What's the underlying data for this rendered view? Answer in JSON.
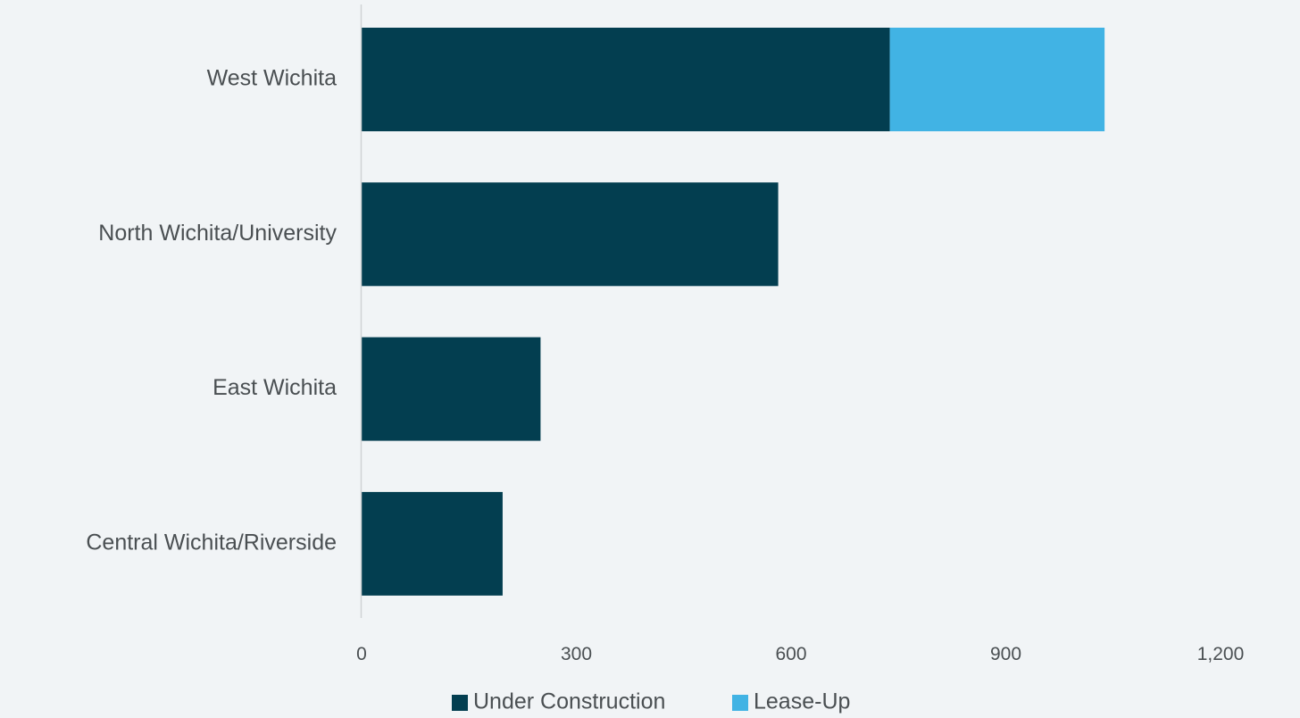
{
  "chart_data": {
    "type": "bar",
    "orientation": "horizontal",
    "stacked": true,
    "categories": [
      "West Wichita",
      "North Wichita/University",
      "East Wichita",
      "Central Wichita/Riverside"
    ],
    "series": [
      {
        "name": "Under Construction",
        "values": [
          738,
          582,
          250,
          197
        ]
      },
      {
        "name": "Lease-Up",
        "values": [
          300,
          0,
          0,
          0
        ]
      }
    ],
    "xlim": [
      0,
      1200
    ],
    "xticks": [
      0,
      300,
      600,
      900,
      1200
    ],
    "xtick_labels": [
      "0",
      "300",
      "600",
      "900",
      "1,200"
    ],
    "grid": false,
    "legend_position": "bottom",
    "title": "",
    "xlabel": "",
    "ylabel": ""
  },
  "colors": {
    "background": "#f1f4f6",
    "Under Construction": "#033e50",
    "Lease-Up": "#41b3e4",
    "axis": "#d0d3d5",
    "text": "#4a4f52"
  }
}
